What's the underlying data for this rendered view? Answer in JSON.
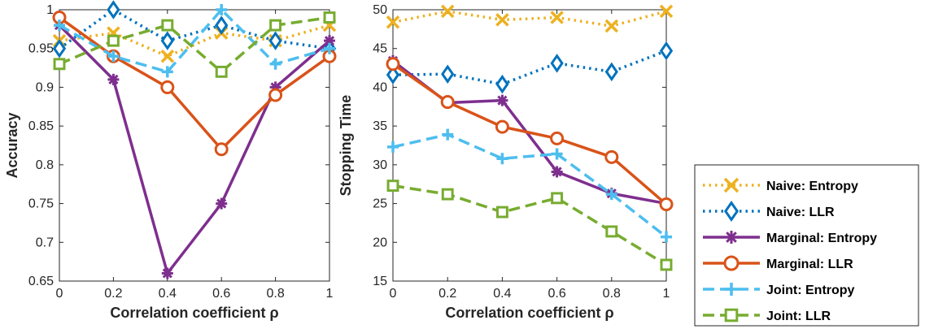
{
  "chart_data": [
    {
      "type": "line",
      "xlabel": "Correlation coefficient ρ",
      "ylabel": "Accuracy",
      "xlim": [
        0,
        1
      ],
      "ylim": [
        0.65,
        1
      ],
      "x": [
        0,
        0.2,
        0.4,
        0.6,
        0.8,
        1
      ],
      "xticks": [
        "0",
        "0.2",
        "0.4",
        "0.6",
        "0.8",
        "1"
      ],
      "yticks": [
        "0.65",
        "0.7",
        "0.75",
        "0.8",
        "0.85",
        "0.9",
        "0.95",
        "1"
      ],
      "series": [
        {
          "name": "Naive: Entropy",
          "values": [
            0.96,
            0.97,
            0.94,
            0.97,
            0.96,
            0.98
          ]
        },
        {
          "name": "Naive: LLR",
          "values": [
            0.95,
            1.0,
            0.96,
            0.98,
            0.96,
            0.95
          ]
        },
        {
          "name": "Marginal: Entropy",
          "values": [
            0.98,
            0.91,
            0.66,
            0.75,
            0.9,
            0.96
          ]
        },
        {
          "name": "Marginal: LLR",
          "values": [
            0.99,
            0.94,
            0.9,
            0.82,
            0.89,
            0.94
          ]
        },
        {
          "name": "Joint: Entropy",
          "values": [
            0.98,
            0.94,
            0.92,
            1.0,
            0.93,
            0.95
          ]
        },
        {
          "name": "Joint: LLR",
          "values": [
            0.93,
            0.96,
            0.98,
            0.92,
            0.98,
            0.99
          ]
        }
      ]
    },
    {
      "type": "line",
      "xlabel": "Correlation coefficient ρ",
      "ylabel": "Stopping Time",
      "xlim": [
        0,
        1
      ],
      "ylim": [
        15,
        50
      ],
      "x": [
        0,
        0.2,
        0.4,
        0.6,
        0.8,
        1
      ],
      "xticks": [
        "0",
        "0.2",
        "0.4",
        "0.6",
        "0.8",
        "1"
      ],
      "yticks": [
        "15",
        "20",
        "25",
        "30",
        "35",
        "40",
        "45",
        "50"
      ],
      "series": [
        {
          "name": "Naive: Entropy",
          "values": [
            48.4,
            49.8,
            48.7,
            49.0,
            47.9,
            49.8
          ]
        },
        {
          "name": "Naive: LLR",
          "values": [
            41.6,
            41.7,
            40.4,
            43.1,
            42.0,
            44.7
          ]
        },
        {
          "name": "Marginal: Entropy",
          "values": [
            43.4,
            38.0,
            38.3,
            29.1,
            26.3,
            25.0
          ]
        },
        {
          "name": "Marginal: LLR",
          "values": [
            43.0,
            38.1,
            34.9,
            33.4,
            31.0,
            24.9
          ]
        },
        {
          "name": "Joint: Entropy",
          "values": [
            32.3,
            33.9,
            30.8,
            31.4,
            26.2,
            20.7
          ]
        },
        {
          "name": "Joint: LLR",
          "values": [
            27.3,
            26.2,
            23.9,
            25.7,
            21.4,
            17.1
          ]
        }
      ]
    }
  ],
  "legend": {
    "position": "right",
    "entries": [
      {
        "label": "Naive: Entropy",
        "color": "#EDB120",
        "marker": "x",
        "dash": "dot"
      },
      {
        "label": "Naive: LLR",
        "color": "#0072BD",
        "marker": "diamond",
        "dash": "dot"
      },
      {
        "label": "Marginal: Entropy",
        "color": "#7E2F8E",
        "marker": "asterisk",
        "dash": "solid"
      },
      {
        "label": "Marginal: LLR",
        "color": "#D95319",
        "marker": "circle",
        "dash": "solid"
      },
      {
        "label": "Joint: Entropy",
        "color": "#4DBEEE",
        "marker": "plus",
        "dash": "dash"
      },
      {
        "label": "Joint: LLR",
        "color": "#77AC30",
        "marker": "square",
        "dash": "dash"
      }
    ]
  }
}
